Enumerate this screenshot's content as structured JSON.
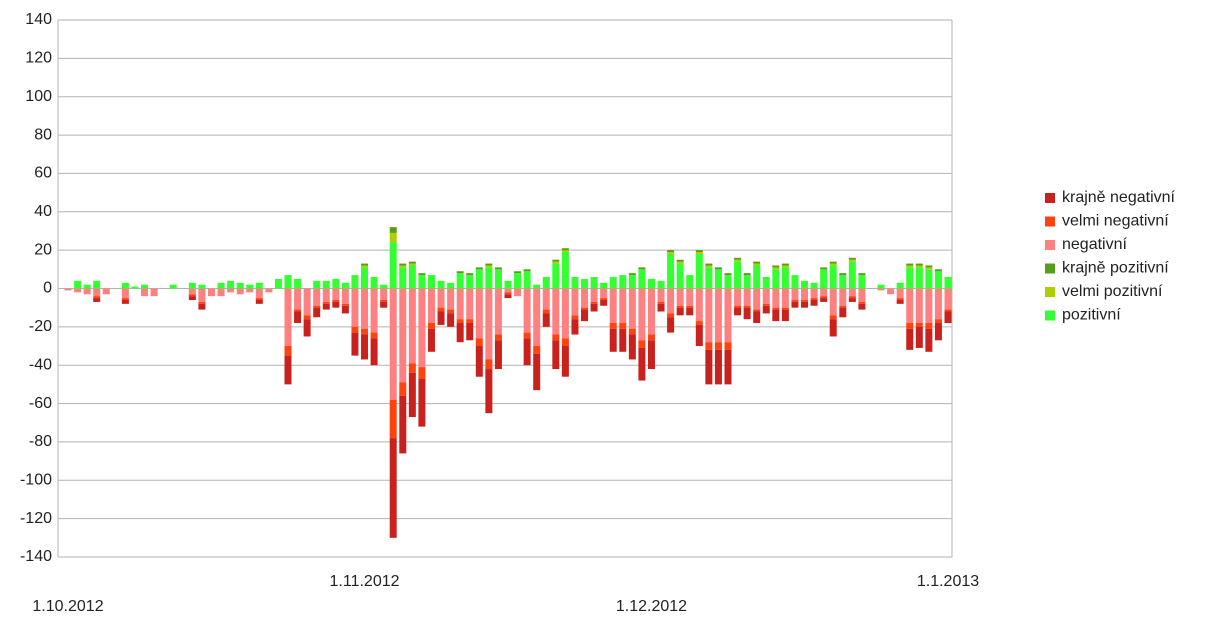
{
  "chart_data": {
    "type": "stacked_bar",
    "categories": [
      "1.10.2012",
      null,
      null,
      null,
      null,
      null,
      null,
      null,
      null,
      null,
      null,
      null,
      null,
      null,
      null,
      null,
      null,
      null,
      null,
      null,
      null,
      null,
      null,
      null,
      null,
      null,
      null,
      null,
      null,
      null,
      null,
      "1.11.2012",
      null,
      null,
      null,
      null,
      null,
      null,
      null,
      null,
      null,
      null,
      null,
      null,
      null,
      null,
      null,
      null,
      null,
      null,
      null,
      null,
      null,
      null,
      null,
      null,
      null,
      null,
      null,
      null,
      null,
      "1.12.2012",
      null,
      null,
      null,
      null,
      null,
      null,
      null,
      null,
      null,
      null,
      null,
      null,
      null,
      null,
      null,
      null,
      null,
      null,
      null,
      null,
      null,
      null,
      null,
      null,
      null,
      null,
      null,
      null,
      null,
      null,
      "1.1.2013"
    ],
    "series": [
      {
        "name": "krajně negativní",
        "color": "#c9211e",
        "values": [
          0,
          0,
          0,
          -2,
          0,
          0,
          -2,
          0,
          0,
          0,
          0,
          0,
          0,
          -2,
          -3,
          0,
          0,
          0,
          0,
          0,
          -2,
          0,
          0,
          -15,
          -6,
          -9,
          -5,
          -3,
          -3,
          -4,
          -12,
          -13,
          -14,
          -3,
          -52,
          -30,
          -23,
          -25,
          -12,
          -7,
          -7,
          -10,
          -9,
          -16,
          -23,
          -15,
          -2,
          0,
          -14,
          -19,
          -7,
          -15,
          -16,
          -8,
          -6,
          -4,
          -3,
          -12,
          -12,
          -13,
          -17,
          -15,
          -4,
          -8,
          -4,
          -4,
          -11,
          -18,
          -18,
          -18,
          -4,
          -6,
          -6,
          -4,
          -6,
          -6,
          -3,
          -3,
          -3,
          -2,
          -9,
          -5,
          -2,
          -3,
          0,
          0,
          0,
          -2,
          -11,
          -11,
          -12,
          -9,
          -6
        ]
      },
      {
        "name": "velmi negativní",
        "color": "#ff420e",
        "values": [
          0,
          0,
          0,
          -1,
          0,
          0,
          -1,
          0,
          0,
          0,
          0,
          0,
          0,
          -1,
          -1,
          0,
          0,
          0,
          0,
          0,
          -1,
          0,
          0,
          -5,
          -1,
          -2,
          -1,
          -1,
          -1,
          -1,
          -3,
          -3,
          -3,
          -1,
          -20,
          -7,
          -5,
          -6,
          -3,
          -2,
          -2,
          -2,
          -2,
          -4,
          -5,
          -3,
          -1,
          0,
          -3,
          -4,
          -2,
          -3,
          -4,
          -2,
          -1,
          -1,
          -1,
          -3,
          -3,
          -3,
          -4,
          -3,
          -1,
          -2,
          -1,
          -1,
          -2,
          -4,
          -4,
          -4,
          -1,
          -1,
          -1,
          -1,
          -1,
          -1,
          -1,
          -1,
          -1,
          -1,
          -2,
          -1,
          -1,
          -1,
          0,
          0,
          0,
          -1,
          -3,
          -2,
          -3,
          -2,
          -1
        ]
      },
      {
        "name": "negativní",
        "color": "#ff8080",
        "values": [
          -1,
          -2,
          -3,
          -4,
          -3,
          0,
          -5,
          0,
          -4,
          -4,
          0,
          0,
          0,
          -3,
          -7,
          -4,
          -4,
          -2,
          -3,
          -2,
          -5,
          -2,
          0,
          -30,
          -11,
          -14,
          -9,
          -7,
          -6,
          -8,
          -20,
          -21,
          -23,
          -6,
          -58,
          -49,
          -39,
          -41,
          -18,
          -10,
          -11,
          -16,
          -16,
          -26,
          -37,
          -24,
          -2,
          -4,
          -23,
          -30,
          -11,
          -24,
          -26,
          -14,
          -10,
          -7,
          -5,
          -18,
          -18,
          -21,
          -27,
          -24,
          -7,
          -13,
          -9,
          -9,
          -17,
          -28,
          -28,
          -28,
          -9,
          -9,
          -11,
          -8,
          -10,
          -10,
          -6,
          -6,
          -5,
          -4,
          -14,
          -9,
          -4,
          -7,
          0,
          -1,
          -3,
          -5,
          -18,
          -18,
          -18,
          -16,
          -11
        ]
      },
      {
        "name": "krajně pozitivní",
        "color": "#579d1c",
        "values": [
          0,
          0,
          0,
          0,
          0,
          0,
          0,
          0,
          0,
          0,
          0,
          0,
          0,
          0,
          0,
          0,
          0,
          0,
          0,
          0,
          0,
          0,
          0,
          0,
          0,
          0,
          0,
          0,
          0,
          0,
          0,
          1,
          0,
          0,
          3,
          1,
          1,
          1,
          0,
          0,
          0,
          1,
          1,
          1,
          1,
          1,
          0,
          1,
          1,
          0,
          0,
          1,
          1,
          0,
          0,
          0,
          0,
          0,
          0,
          1,
          1,
          0,
          0,
          1,
          1,
          0,
          1,
          1,
          1,
          1,
          1,
          1,
          1,
          0,
          1,
          1,
          0,
          0,
          0,
          1,
          1,
          1,
          1,
          1,
          0,
          0,
          0,
          0,
          1,
          1,
          1,
          1,
          0
        ]
      },
      {
        "name": "velmi pozitivní",
        "color": "#aecf00",
        "values": [
          0,
          0,
          0,
          0,
          0,
          0,
          0,
          0,
          0,
          0,
          0,
          0,
          0,
          0,
          0,
          0,
          0,
          0,
          0,
          0,
          0,
          0,
          0,
          0,
          0,
          0,
          0,
          0,
          0,
          0,
          0,
          1,
          0,
          0,
          5,
          1,
          1,
          0,
          0,
          0,
          0,
          0,
          0,
          0,
          1,
          0,
          0,
          0,
          0,
          0,
          0,
          1,
          1,
          0,
          0,
          0,
          0,
          0,
          0,
          0,
          0,
          0,
          0,
          1,
          1,
          0,
          1,
          1,
          0,
          0,
          1,
          0,
          1,
          0,
          1,
          1,
          0,
          0,
          0,
          0,
          1,
          0,
          1,
          0,
          0,
          0,
          0,
          0,
          1,
          1,
          1,
          0,
          0
        ]
      },
      {
        "name": "pozitivní",
        "color": "#33ff33",
        "values": [
          0,
          4,
          2,
          4,
          0,
          0,
          3,
          1,
          2,
          0,
          0,
          2,
          0,
          3,
          2,
          0,
          3,
          4,
          3,
          2,
          3,
          0,
          5,
          7,
          5,
          0,
          4,
          4,
          5,
          3,
          7,
          11,
          6,
          2,
          24,
          11,
          12,
          7,
          7,
          4,
          3,
          8,
          7,
          10,
          11,
          10,
          4,
          8,
          9,
          2,
          6,
          13,
          19,
          6,
          5,
          6,
          3,
          6,
          7,
          7,
          10,
          5,
          4,
          18,
          13,
          7,
          18,
          11,
          10,
          7,
          14,
          7,
          12,
          6,
          10,
          11,
          7,
          4,
          3,
          10,
          12,
          7,
          14,
          7,
          0,
          2,
          0,
          3,
          11,
          11,
          10,
          9,
          6
        ]
      }
    ],
    "ylim": [
      -140,
      140
    ],
    "yticks": [
      -140,
      -120,
      -100,
      -80,
      -60,
      -40,
      -20,
      0,
      20,
      40,
      60,
      80,
      100,
      120,
      140
    ],
    "grid": true,
    "legend": "right"
  }
}
